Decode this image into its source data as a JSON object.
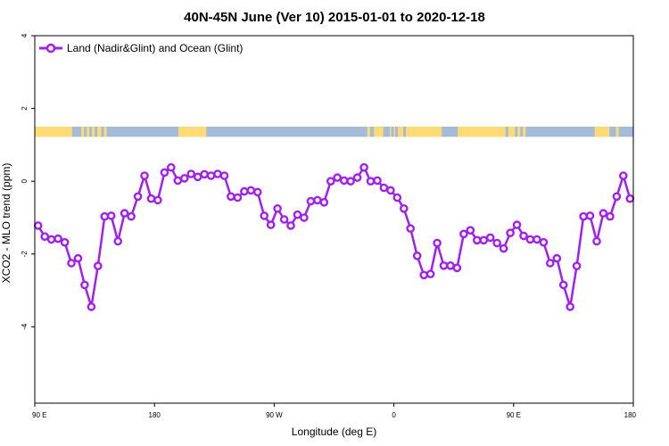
{
  "chart_data": {
    "type": "line",
    "title": "40N-45N June (Ver 10)   2015-01-01 to 2020-12-18",
    "xlabel": "Longitude (deg E)",
    "ylabel": "XCO2 - MLO trend (ppm)",
    "xlim": [
      90,
      540
    ],
    "ylim": [
      -6.1,
      4.0
    ],
    "x_ticks": [
      {
        "value": 90,
        "label": "90 E"
      },
      {
        "value": 180,
        "label": "180"
      },
      {
        "value": 270,
        "label": "90 W"
      },
      {
        "value": 360,
        "label": "0"
      },
      {
        "value": 450,
        "label": "90 E"
      },
      {
        "value": 540,
        "label": "180"
      }
    ],
    "y_ticks": [
      {
        "value": 4,
        "label": "4"
      },
      {
        "value": 2,
        "label": "2"
      },
      {
        "value": 0,
        "label": "0"
      },
      {
        "value": -2,
        "label": "-2"
      },
      {
        "value": -4,
        "label": "-4"
      }
    ],
    "legend": {
      "position": "top-left"
    },
    "series": [
      {
        "name": "Land (Nadir&Glint) and Ocean (Glint)",
        "color": "#a020f0",
        "x": [
          92.5,
          97.5,
          102.5,
          107.5,
          112.5,
          117.5,
          122.5,
          127.5,
          132.5,
          137.5,
          142.5,
          147.5,
          152.5,
          157.5,
          162.5,
          167.5,
          172.5,
          177.5,
          182.5,
          187.5,
          192.5,
          197.5,
          202.5,
          207.5,
          212.5,
          217.5,
          222.5,
          227.5,
          232.5,
          237.5,
          242.5,
          247.5,
          252.5,
          257.5,
          262.5,
          267.5,
          272.5,
          277.5,
          282.5,
          287.5,
          292.5,
          297.5,
          302.5,
          307.5,
          312.5,
          317.5,
          322.5,
          327.5,
          332.5,
          337.5,
          342.5,
          347.5,
          352.5,
          357.5,
          362.5,
          367.5,
          372.5,
          377.5,
          382.5,
          387.5,
          392.5,
          397.5,
          402.5,
          407.5,
          412.5,
          417.5,
          422.5,
          427.5,
          432.5,
          437.5,
          442.5,
          447.5,
          452.5,
          457.5,
          462.5,
          467.5,
          472.5,
          477.5,
          482.5,
          487.5,
          492.5,
          497.5,
          502.5,
          507.5,
          512.5,
          517.5,
          522.5,
          527.5,
          532.5,
          537.5
        ],
        "values": [
          -1.22,
          -1.52,
          -1.6,
          -1.58,
          -1.68,
          -2.25,
          -2.12,
          -2.85,
          -3.45,
          -2.33,
          -0.97,
          -0.95,
          -1.65,
          -0.88,
          -0.97,
          -0.42,
          0.15,
          -0.48,
          -0.52,
          0.24,
          0.38,
          0.02,
          0.08,
          0.2,
          0.12,
          0.19,
          0.15,
          0.2,
          0.15,
          -0.42,
          -0.45,
          -0.28,
          -0.25,
          -0.3,
          -0.95,
          -1.2,
          -0.75,
          -1.05,
          -1.22,
          -0.92,
          -1.0,
          -0.55,
          -0.52,
          -0.58,
          0.0,
          0.1,
          0.02,
          0.0,
          0.1,
          0.38,
          0.0,
          0.02,
          -0.18,
          -0.25,
          -0.45,
          -0.75,
          -1.3,
          -2.05,
          -2.58,
          -2.55,
          -1.7,
          -2.32,
          -2.32,
          -2.38,
          -1.45,
          -1.35,
          -1.62,
          -1.62,
          -1.55,
          -1.7,
          -1.85,
          -1.42,
          -1.2,
          -1.5,
          -1.6,
          -1.6,
          -1.68,
          -2.25,
          -2.12,
          -2.85,
          -3.45,
          -2.33,
          -0.97,
          -0.95,
          -1.65,
          -0.88,
          -0.97,
          -0.42,
          0.15,
          -0.48
        ]
      }
    ],
    "surface_strip": {
      "y_range": [
        1.22,
        1.5
      ],
      "land_color": "#fedb74",
      "ocean_color": "#a4bcda",
      "land_segments": [
        [
          90,
          118
        ],
        [
          125,
          127
        ],
        [
          129,
          131
        ],
        [
          133,
          135
        ],
        [
          137,
          140
        ],
        [
          142,
          144
        ],
        [
          198,
          219
        ],
        [
          340,
          342
        ],
        [
          345,
          352
        ],
        [
          357,
          358
        ],
        [
          360,
          361
        ],
        [
          363,
          367
        ],
        [
          369,
          396
        ],
        [
          408,
          444
        ],
        [
          446,
          451
        ],
        [
          453,
          455
        ],
        [
          457,
          459
        ],
        [
          511,
          522
        ],
        [
          527,
          529
        ]
      ]
    }
  }
}
